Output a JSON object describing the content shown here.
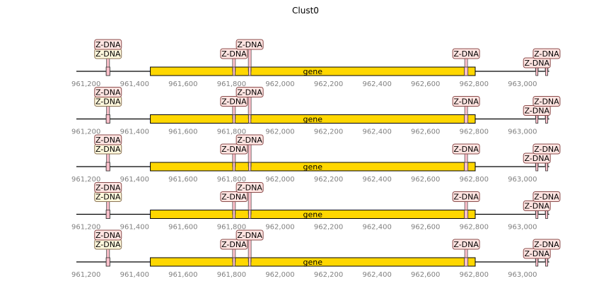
{
  "chart_data": {
    "type": "genomic-tracks",
    "title": "Clust0",
    "xlim": [
      961160,
      963120
    ],
    "ticks": [
      {
        "value": 961200,
        "label": "961,200"
      },
      {
        "value": 961400,
        "label": "961,400"
      },
      {
        "value": 961600,
        "label": "961,600"
      },
      {
        "value": 961800,
        "label": "961,800"
      },
      {
        "value": 962000,
        "label": "962,000"
      },
      {
        "value": 962200,
        "label": "962,200"
      },
      {
        "value": 962400,
        "label": "962,400"
      },
      {
        "value": 962600,
        "label": "962,600"
      },
      {
        "value": 962800,
        "label": "962,800"
      },
      {
        "value": 963000,
        "label": "963,000"
      }
    ],
    "tracks": [
      {
        "axis_range": [
          961160,
          963110
        ],
        "gene": {
          "start": 961465,
          "end": 962805,
          "label": "gene"
        },
        "features": [
          {
            "label": "Z-DNA",
            "start": 961283,
            "end": 961298,
            "color": "#ffd700",
            "level": 2
          },
          {
            "label": "Z-DNA",
            "start": 961283,
            "end": 961298,
            "color": "#ffc0cb",
            "level": 3
          },
          {
            "label": "Z-DNA",
            "start": 961805,
            "end": 961815,
            "color": "#ffc0cb",
            "level": 2
          },
          {
            "label": "Z-DNA",
            "start": 961870,
            "end": 961880,
            "color": "#ffc0cb",
            "level": 3
          },
          {
            "label": "Z-DNA",
            "start": 962760,
            "end": 962775,
            "color": "#ffc0cb",
            "level": 2
          },
          {
            "label": "Z-DNA",
            "start": 963055,
            "end": 963063,
            "color": "#ffc0cb",
            "level": 1
          },
          {
            "label": "Z-DNA",
            "start": 963095,
            "end": 963103,
            "color": "#ffc0cb",
            "level": 2
          }
        ]
      },
      {
        "axis_range": [
          961160,
          963110
        ],
        "gene": {
          "start": 961465,
          "end": 962805,
          "label": "gene"
        },
        "features": [
          {
            "label": "Z-DNA",
            "start": 961283,
            "end": 961298,
            "color": "#ffd700",
            "level": 2
          },
          {
            "label": "Z-DNA",
            "start": 961283,
            "end": 961298,
            "color": "#ffc0cb",
            "level": 3
          },
          {
            "label": "Z-DNA",
            "start": 961805,
            "end": 961815,
            "color": "#ffc0cb",
            "level": 2
          },
          {
            "label": "Z-DNA",
            "start": 961870,
            "end": 961880,
            "color": "#ffc0cb",
            "level": 3
          },
          {
            "label": "Z-DNA",
            "start": 962760,
            "end": 962775,
            "color": "#ffc0cb",
            "level": 2
          },
          {
            "label": "Z-DNA",
            "start": 963055,
            "end": 963063,
            "color": "#ffc0cb",
            "level": 1
          },
          {
            "label": "Z-DNA",
            "start": 963095,
            "end": 963103,
            "color": "#ffc0cb",
            "level": 2
          }
        ]
      },
      {
        "axis_range": [
          961160,
          963110
        ],
        "gene": {
          "start": 961465,
          "end": 962805,
          "label": "gene"
        },
        "features": [
          {
            "label": "Z-DNA",
            "start": 961283,
            "end": 961298,
            "color": "#ffd700",
            "level": 2
          },
          {
            "label": "Z-DNA",
            "start": 961283,
            "end": 961298,
            "color": "#ffc0cb",
            "level": 3
          },
          {
            "label": "Z-DNA",
            "start": 961805,
            "end": 961815,
            "color": "#ffc0cb",
            "level": 2
          },
          {
            "label": "Z-DNA",
            "start": 961870,
            "end": 961880,
            "color": "#ffc0cb",
            "level": 3
          },
          {
            "label": "Z-DNA",
            "start": 962760,
            "end": 962775,
            "color": "#ffc0cb",
            "level": 2
          },
          {
            "label": "Z-DNA",
            "start": 963055,
            "end": 963063,
            "color": "#ffc0cb",
            "level": 1
          },
          {
            "label": "Z-DNA",
            "start": 963095,
            "end": 963103,
            "color": "#ffc0cb",
            "level": 2
          }
        ]
      },
      {
        "axis_range": [
          961160,
          963110
        ],
        "gene": {
          "start": 961465,
          "end": 962805,
          "label": "gene"
        },
        "features": [
          {
            "label": "Z-DNA",
            "start": 961283,
            "end": 961298,
            "color": "#ffd700",
            "level": 2
          },
          {
            "label": "Z-DNA",
            "start": 961283,
            "end": 961298,
            "color": "#ffc0cb",
            "level": 3
          },
          {
            "label": "Z-DNA",
            "start": 961805,
            "end": 961815,
            "color": "#ffc0cb",
            "level": 2
          },
          {
            "label": "Z-DNA",
            "start": 961870,
            "end": 961880,
            "color": "#ffc0cb",
            "level": 3
          },
          {
            "label": "Z-DNA",
            "start": 962760,
            "end": 962775,
            "color": "#ffc0cb",
            "level": 2
          },
          {
            "label": "Z-DNA",
            "start": 963055,
            "end": 963063,
            "color": "#ffc0cb",
            "level": 1
          },
          {
            "label": "Z-DNA",
            "start": 963095,
            "end": 963103,
            "color": "#ffc0cb",
            "level": 2
          }
        ]
      },
      {
        "axis_range": [
          961160,
          963110
        ],
        "gene": {
          "start": 961465,
          "end": 962805,
          "label": "gene"
        },
        "features": [
          {
            "label": "Z-DNA",
            "start": 961283,
            "end": 961298,
            "color": "#ffd700",
            "level": 2
          },
          {
            "label": "Z-DNA",
            "start": 961283,
            "end": 961298,
            "color": "#ffc0cb",
            "level": 3
          },
          {
            "label": "Z-DNA",
            "start": 961805,
            "end": 961815,
            "color": "#ffc0cb",
            "level": 2
          },
          {
            "label": "Z-DNA",
            "start": 961870,
            "end": 961880,
            "color": "#ffc0cb",
            "level": 3
          },
          {
            "label": "Z-DNA",
            "start": 962760,
            "end": 962775,
            "color": "#ffc0cb",
            "level": 2
          },
          {
            "label": "Z-DNA",
            "start": 963055,
            "end": 963063,
            "color": "#ffc0cb",
            "level": 1
          },
          {
            "label": "Z-DNA",
            "start": 963095,
            "end": 963103,
            "color": "#ffc0cb",
            "level": 2
          }
        ]
      }
    ],
    "colors": {
      "gene_fill": "#ffd700",
      "axis_line": "#000000",
      "tick_text": "#808080",
      "label_box_fill": "#ffe4e1",
      "label_box_edge": "#8b4c4c",
      "label_box_fill_yellow": "#fff8dc",
      "label_box_edge_yellow": "#8b7355"
    }
  }
}
